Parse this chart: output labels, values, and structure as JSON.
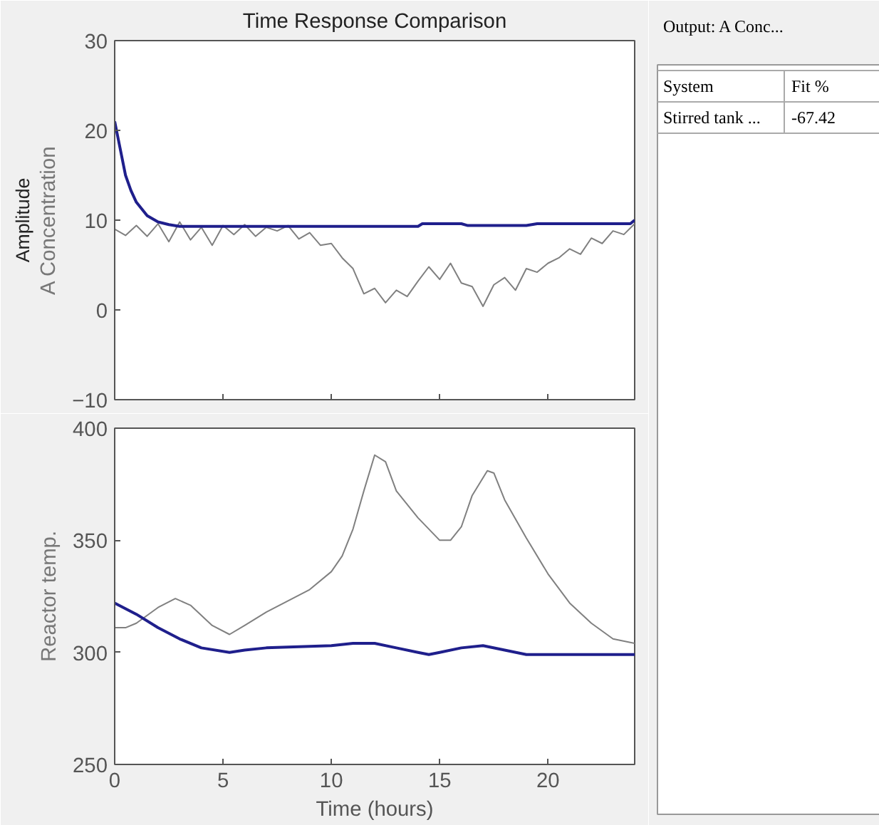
{
  "chart_data": [
    {
      "type": "line",
      "title": "Time Response Comparison",
      "ylabel": "A Concentration",
      "annotations": [
        "Amplitude"
      ],
      "xlim": [
        0,
        24
      ],
      "xticks": [
        0,
        5,
        10,
        15,
        20
      ],
      "ylim": [
        -10,
        30
      ],
      "yticks": [
        -10,
        0,
        10,
        20,
        30
      ],
      "tick_labels": "y",
      "series": [
        {
          "color": "#808080",
          "x": [
            0,
            0.5,
            1,
            1.5,
            2,
            2.5,
            3,
            3.5,
            4,
            4.5,
            5,
            5.5,
            6,
            6.5,
            7,
            7.5,
            8,
            8.5,
            9,
            9.5,
            10,
            10.5,
            11,
            11.5,
            12,
            12.5,
            13,
            13.5,
            14,
            14.5,
            15,
            15.5,
            16,
            16.5,
            17,
            17.5,
            18,
            18.5,
            19,
            19.5,
            20,
            20.5,
            21,
            21.5,
            22,
            22.5,
            23,
            23.5,
            24
          ],
          "values": [
            9,
            8.3,
            9.4,
            8.2,
            9.6,
            7.6,
            9.8,
            7.8,
            9.2,
            7.2,
            9.4,
            8.4,
            9.5,
            8.2,
            9.2,
            8.8,
            9.4,
            7.9,
            8.6,
            7.2,
            7.4,
            5.8,
            4.6,
            1.8,
            2.4,
            0.8,
            2.2,
            1.5,
            3.2,
            4.8,
            3.4,
            5.2,
            3,
            2.6,
            0.4,
            2.8,
            3.6,
            2.2,
            4.6,
            4.2,
            5.2,
            5.8,
            6.8,
            6.2,
            8,
            7.4,
            8.8,
            8.4,
            9.6
          ]
        },
        {
          "color": "#1f1f8c",
          "x": [
            0,
            0.25,
            0.5,
            0.75,
            1,
            1.5,
            2,
            2.5,
            3,
            5,
            10,
            14,
            14.2,
            16,
            16.3,
            19,
            19.5,
            23.8,
            24
          ],
          "values": [
            21,
            18,
            15,
            13.3,
            12,
            10.5,
            9.8,
            9.5,
            9.3,
            9.3,
            9.3,
            9.3,
            9.6,
            9.6,
            9.4,
            9.4,
            9.6,
            9.6,
            10
          ]
        }
      ]
    },
    {
      "type": "line",
      "ylabel": "Reactor temp.",
      "xlabel": "Time (hours)",
      "xlim": [
        0,
        24
      ],
      "xticks": [
        0,
        5,
        10,
        15,
        20
      ],
      "ylim": [
        250,
        400
      ],
      "yticks": [
        250,
        300,
        350,
        400
      ],
      "series": [
        {
          "color": "#808080",
          "x": [
            0,
            0.5,
            1,
            2,
            2.8,
            3.5,
            4.5,
            5.3,
            6,
            7,
            8,
            9,
            10,
            10.5,
            11,
            11.5,
            12,
            12.5,
            13,
            14,
            15,
            15.5,
            16,
            16.5,
            17.2,
            17.5,
            18,
            19,
            20,
            21,
            22,
            23,
            24
          ],
          "values": [
            311,
            311,
            313,
            320,
            324,
            321,
            312,
            308,
            312,
            318,
            323,
            328,
            336,
            343,
            355,
            372,
            388,
            385,
            372,
            360,
            350,
            350,
            356,
            370,
            381,
            380,
            368,
            351,
            335,
            322,
            313,
            306,
            304
          ]
        },
        {
          "color": "#1f1f8c",
          "x": [
            0,
            1,
            2,
            3,
            4,
            5.3,
            6,
            7,
            10,
            11,
            12,
            13,
            14,
            14.5,
            15,
            16,
            17,
            18,
            19,
            24
          ],
          "values": [
            322,
            317,
            311,
            306,
            302,
            300,
            301,
            302,
            303,
            304,
            304,
            302,
            300,
            299,
            300,
            302,
            303,
            301,
            299,
            299
          ]
        }
      ]
    },
    {
      "type": "other",
      "annotations": [
        "Output: A Conc...",
        "System",
        "Fit %",
        "Stirred tank ...",
        "-67.42"
      ]
    }
  ]
}
